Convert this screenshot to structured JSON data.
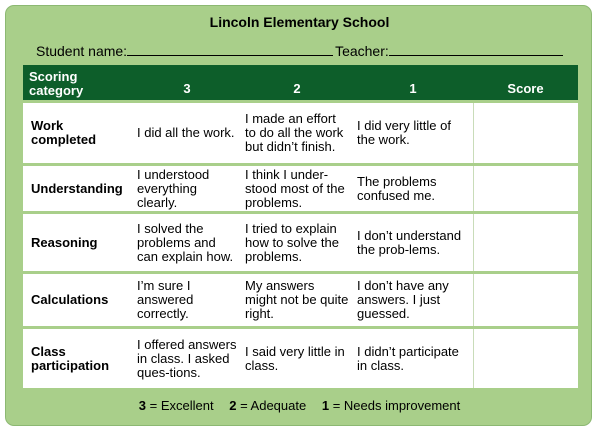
{
  "school": "Lincoln Elementary School",
  "fields": {
    "student_label": "Student name:",
    "teacher_label": "Teacher:"
  },
  "headers": [
    "Scoring category",
    "3",
    "2",
    "1",
    "Score"
  ],
  "rows": [
    {
      "category": "Work completed",
      "c3": "I did all the work.",
      "c2": "I made an effort to do all the work but didn’t finish.",
      "c1": "I did very little of the work.",
      "score": ""
    },
    {
      "category": "Understanding",
      "c3": "I understood everything clearly.",
      "c2": "I think I under-stood most of the problems.",
      "c1": "The problems confused me.",
      "score": ""
    },
    {
      "category": "Reasoning",
      "c3": "I solved the problems and can explain how.",
      "c2": "I tried to explain how to solve the problems.",
      "c1": "I don’t understand the prob-lems.",
      "score": ""
    },
    {
      "category": "Calculations",
      "c3": "I’m sure I answered correctly.",
      "c2": "My answers might not be quite right.",
      "c1": "I don’t have any answers. I just guessed.",
      "score": ""
    },
    {
      "category": "Class participation",
      "c3": "I offered answers in class. I asked ques-tions.",
      "c2": "I said very little in class.",
      "c1": "I didn’t participate in class.",
      "score": ""
    }
  ],
  "legend": [
    {
      "num": "3",
      "text": "= Excellent"
    },
    {
      "num": "2",
      "text": "= Adequate"
    },
    {
      "num": "1",
      "text": "= Needs improvement"
    }
  ],
  "colors": {
    "panel": "#a9cf8a",
    "header": "#0d5e2a",
    "cell": "#ffffff"
  }
}
